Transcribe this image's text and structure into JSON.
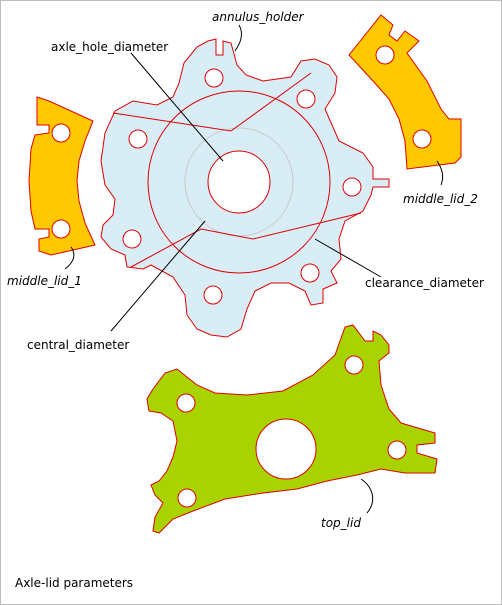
{
  "labels": {
    "annulus_holder": "annulus_holder",
    "axle_hole_diameter": "axle_hole_diameter",
    "middle_lid_2": "middle_lid_2",
    "middle_lid_1": "middle_lid_1",
    "clearance_diameter": "clearance_diameter",
    "central_diameter": "central_diameter",
    "top_lid": "top_lid"
  },
  "caption": "Axle-lid parameters",
  "colors": {
    "annulus_fill": "#d9edf6",
    "middle_lid_fill": "#ffc800",
    "top_lid_fill": "#a8d300",
    "outline": "#e00000",
    "construction_circle": "#c8c8c8"
  }
}
